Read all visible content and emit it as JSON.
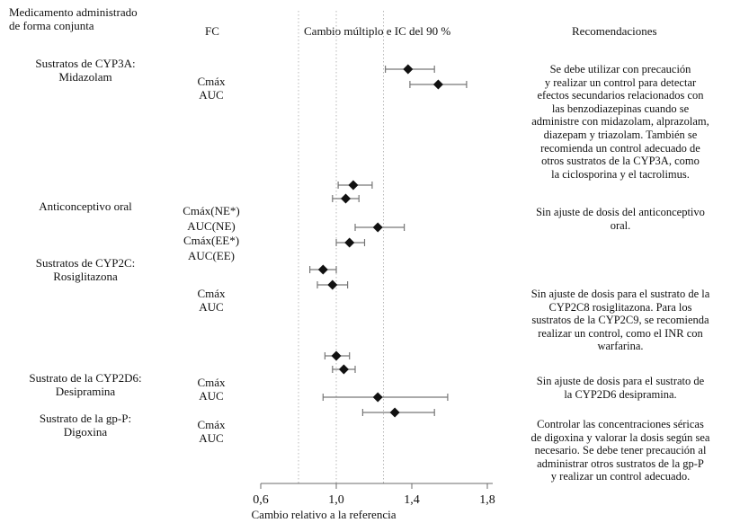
{
  "headers": {
    "drug": [
      "Medicamento administrado",
      "de forma conjunta"
    ],
    "pk": "FC",
    "chart": "Cambio múltiplo e IC del 90 %",
    "recommendations": "Recomendaciones"
  },
  "drug_groups": [
    [
      "Sustratos de CYP3A:",
      "Midazolam"
    ],
    [
      "Anticonceptivo oral"
    ],
    [
      "Sustratos de CYP2C:",
      "Rosiglitazona"
    ],
    [
      "Sustrato de la CYP2D6:",
      "Desipramina"
    ],
    [
      "Sustrato de la gp-P:",
      "Digoxina"
    ]
  ],
  "pk_labels": [
    [
      "Cmáx",
      "AUC"
    ],
    [
      "Cmáx(NE*)",
      "AUC(NE)",
      "Cmáx(EE*)",
      "AUC(EE)"
    ],
    [
      "Cmáx",
      "AUC"
    ],
    [
      "Cmáx",
      "AUC"
    ],
    [
      "Cmáx",
      "AUC"
    ]
  ],
  "recommendations": [
    [
      "Se debe utilizar con precaución",
      "y realizar un control para detectar",
      "efectos secundarios relacionados con",
      "las benzodiazepinas cuando se",
      "administre con midazolam, alprazolam,",
      "diazepam y triazolam. También se",
      "recomienda un control adecuado  de",
      "otros sustratos de la CYP3A, como",
      "la ciclosporina y el tacrolimus."
    ],
    [
      "Sin ajuste de dosis del anticonceptivo",
      "oral."
    ],
    [
      "Sin ajuste de dosis para el sustrato de la",
      "CYP2C8 rosiglitazona. Para los",
      "sustratos de la CYP2C9, se recomienda",
      "realizar un control, como el INR con",
      "warfarina."
    ],
    [
      "Sin ajuste de dosis para el sustrato de",
      "la CYP2D6 desipramina."
    ],
    [
      "Controlar las concentraciones  séricas",
      "de digoxina y valorar  la dosis según sea",
      "necesario.  Se debe tener precaución al",
      "administrar otros sustratos de la gp-P",
      "y realizar un control adecuado."
    ]
  ],
  "chart_data": {
    "type": "scatter",
    "title": "Cambio múltiplo e IC del 90 %",
    "xlabel": "Cambio relativo a la referencia",
    "xlim": [
      0.5,
      1.8
    ],
    "ticks": [
      {
        "value": 0.6,
        "label": "0,6"
      },
      {
        "value": 1.0,
        "label": "1,0"
      },
      {
        "value": 1.4,
        "label": "1,4"
      },
      {
        "value": 1.8,
        "label": "1,8"
      }
    ],
    "reference_lines": [
      0.8,
      1.0,
      1.25
    ],
    "points": [
      {
        "estimate": 1.38,
        "low": 1.26,
        "high": 1.52
      },
      {
        "estimate": 1.54,
        "low": 1.39,
        "high": 1.69
      },
      {
        "estimate": 1.09,
        "low": 1.01,
        "high": 1.19
      },
      {
        "estimate": 1.05,
        "low": 0.98,
        "high": 1.12
      },
      {
        "estimate": 1.22,
        "low": 1.1,
        "high": 1.36
      },
      {
        "estimate": 1.07,
        "low": 1.0,
        "high": 1.15
      },
      {
        "estimate": 0.93,
        "low": 0.86,
        "high": 1.0
      },
      {
        "estimate": 0.98,
        "low": 0.9,
        "high": 1.06
      },
      {
        "estimate": 1.0,
        "low": 0.94,
        "high": 1.07
      },
      {
        "estimate": 1.04,
        "low": 0.98,
        "high": 1.1
      },
      {
        "estimate": 1.22,
        "low": 0.93,
        "high": 1.59
      },
      {
        "estimate": 1.31,
        "low": 1.14,
        "high": 1.52
      }
    ]
  }
}
